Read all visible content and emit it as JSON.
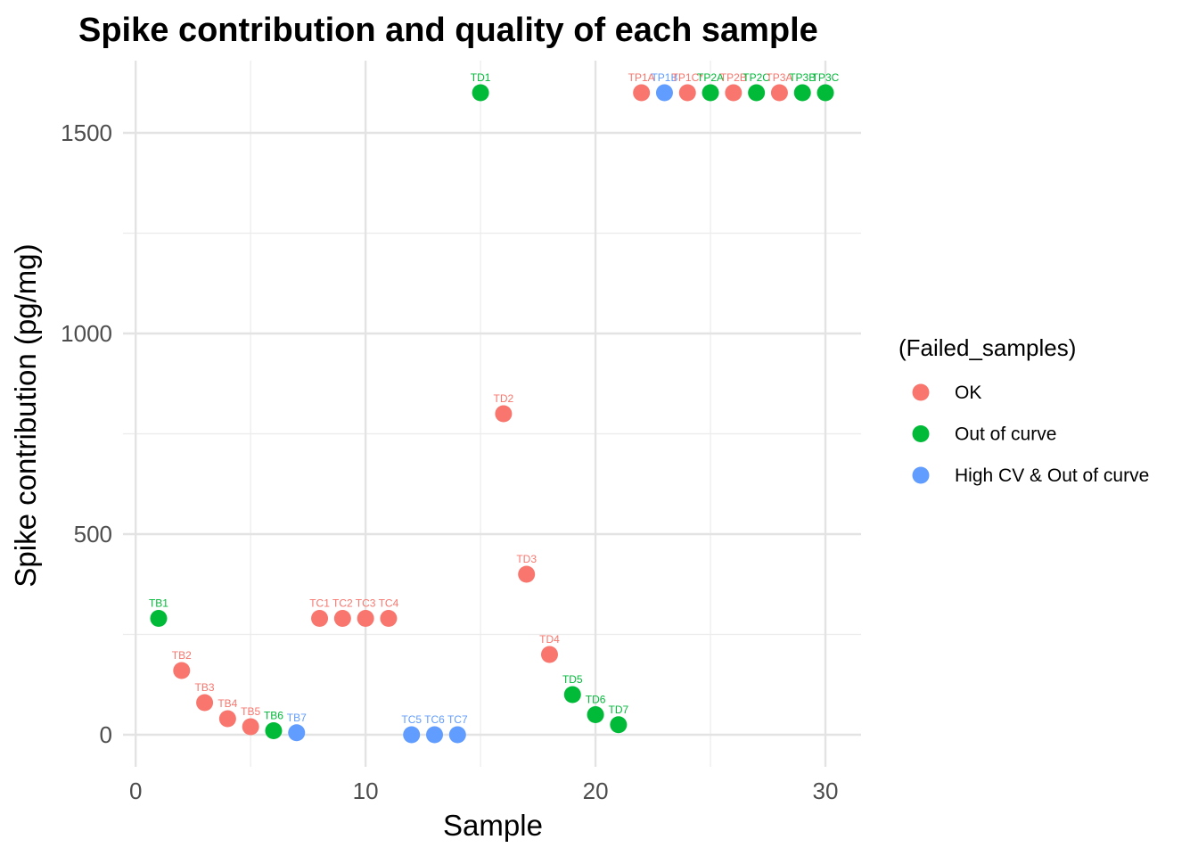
{
  "chart_data": {
    "type": "scatter",
    "title": "Spike contribution and quality of each sample",
    "xlabel": "Sample",
    "ylabel": "Spike contribution (pg/mg)",
    "xlim": [
      -0.55,
      31.55
    ],
    "ylim": [
      -80,
      1680
    ],
    "x_ticks": [
      0,
      10,
      20,
      30
    ],
    "y_ticks": [
      0,
      500,
      1000,
      1500
    ],
    "grid": true,
    "legend": {
      "title": "(Failed_samples)",
      "placement": "right",
      "entries": [
        {
          "label": "OK",
          "color": "#F8766D"
        },
        {
          "label": "Out of curve",
          "color": "#00BA38"
        },
        {
          "label": "High CV & Out of curve",
          "color": "#619CFF"
        }
      ]
    },
    "points": [
      {
        "x": 1,
        "y": 290,
        "label": "TB1",
        "group": "Out of curve"
      },
      {
        "x": 2,
        "y": 160,
        "label": "TB2",
        "group": "OK"
      },
      {
        "x": 3,
        "y": 80,
        "label": "TB3",
        "group": "OK"
      },
      {
        "x": 4,
        "y": 40,
        "label": "TB4",
        "group": "OK"
      },
      {
        "x": 5,
        "y": 20,
        "label": "TB5",
        "group": "OK"
      },
      {
        "x": 6,
        "y": 10,
        "label": "TB6",
        "group": "Out of curve"
      },
      {
        "x": 7,
        "y": 5,
        "label": "TB7",
        "group": "High CV & Out of curve"
      },
      {
        "x": 8,
        "y": 290,
        "label": "TC1",
        "group": "OK"
      },
      {
        "x": 9,
        "y": 290,
        "label": "TC2",
        "group": "OK"
      },
      {
        "x": 10,
        "y": 290,
        "label": "TC3",
        "group": "OK"
      },
      {
        "x": 11,
        "y": 290,
        "label": "TC4",
        "group": "OK"
      },
      {
        "x": 12,
        "y": 0,
        "label": "TC5",
        "group": "High CV & Out of curve"
      },
      {
        "x": 13,
        "y": 0,
        "label": "TC6",
        "group": "High CV & Out of curve"
      },
      {
        "x": 14,
        "y": 0,
        "label": "TC7",
        "group": "High CV & Out of curve"
      },
      {
        "x": 15,
        "y": 1600,
        "label": "TD1",
        "group": "Out of curve"
      },
      {
        "x": 16,
        "y": 800,
        "label": "TD2",
        "group": "OK"
      },
      {
        "x": 17,
        "y": 400,
        "label": "TD3",
        "group": "OK"
      },
      {
        "x": 18,
        "y": 200,
        "label": "TD4",
        "group": "OK"
      },
      {
        "x": 19,
        "y": 100,
        "label": "TD5",
        "group": "Out of curve"
      },
      {
        "x": 20,
        "y": 50,
        "label": "TD6",
        "group": "Out of curve"
      },
      {
        "x": 21,
        "y": 25,
        "label": "TD7",
        "group": "Out of curve"
      },
      {
        "x": 22,
        "y": 1600,
        "label": "TP1A",
        "group": "OK"
      },
      {
        "x": 23,
        "y": 1600,
        "label": "TP1B",
        "group": "High CV & Out of curve"
      },
      {
        "x": 24,
        "y": 1600,
        "label": "TP1C*",
        "group": "OK"
      },
      {
        "x": 25,
        "y": 1600,
        "label": "TP2A",
        "group": "Out of curve"
      },
      {
        "x": 26,
        "y": 1600,
        "label": "TP2B",
        "group": "OK"
      },
      {
        "x": 27,
        "y": 1600,
        "label": "TP2C",
        "group": "Out of curve"
      },
      {
        "x": 28,
        "y": 1600,
        "label": "TP3A",
        "group": "OK"
      },
      {
        "x": 29,
        "y": 1600,
        "label": "TP3B",
        "group": "Out of curve"
      },
      {
        "x": 30,
        "y": 1600,
        "label": "TP3C",
        "group": "Out of curve"
      }
    ]
  }
}
